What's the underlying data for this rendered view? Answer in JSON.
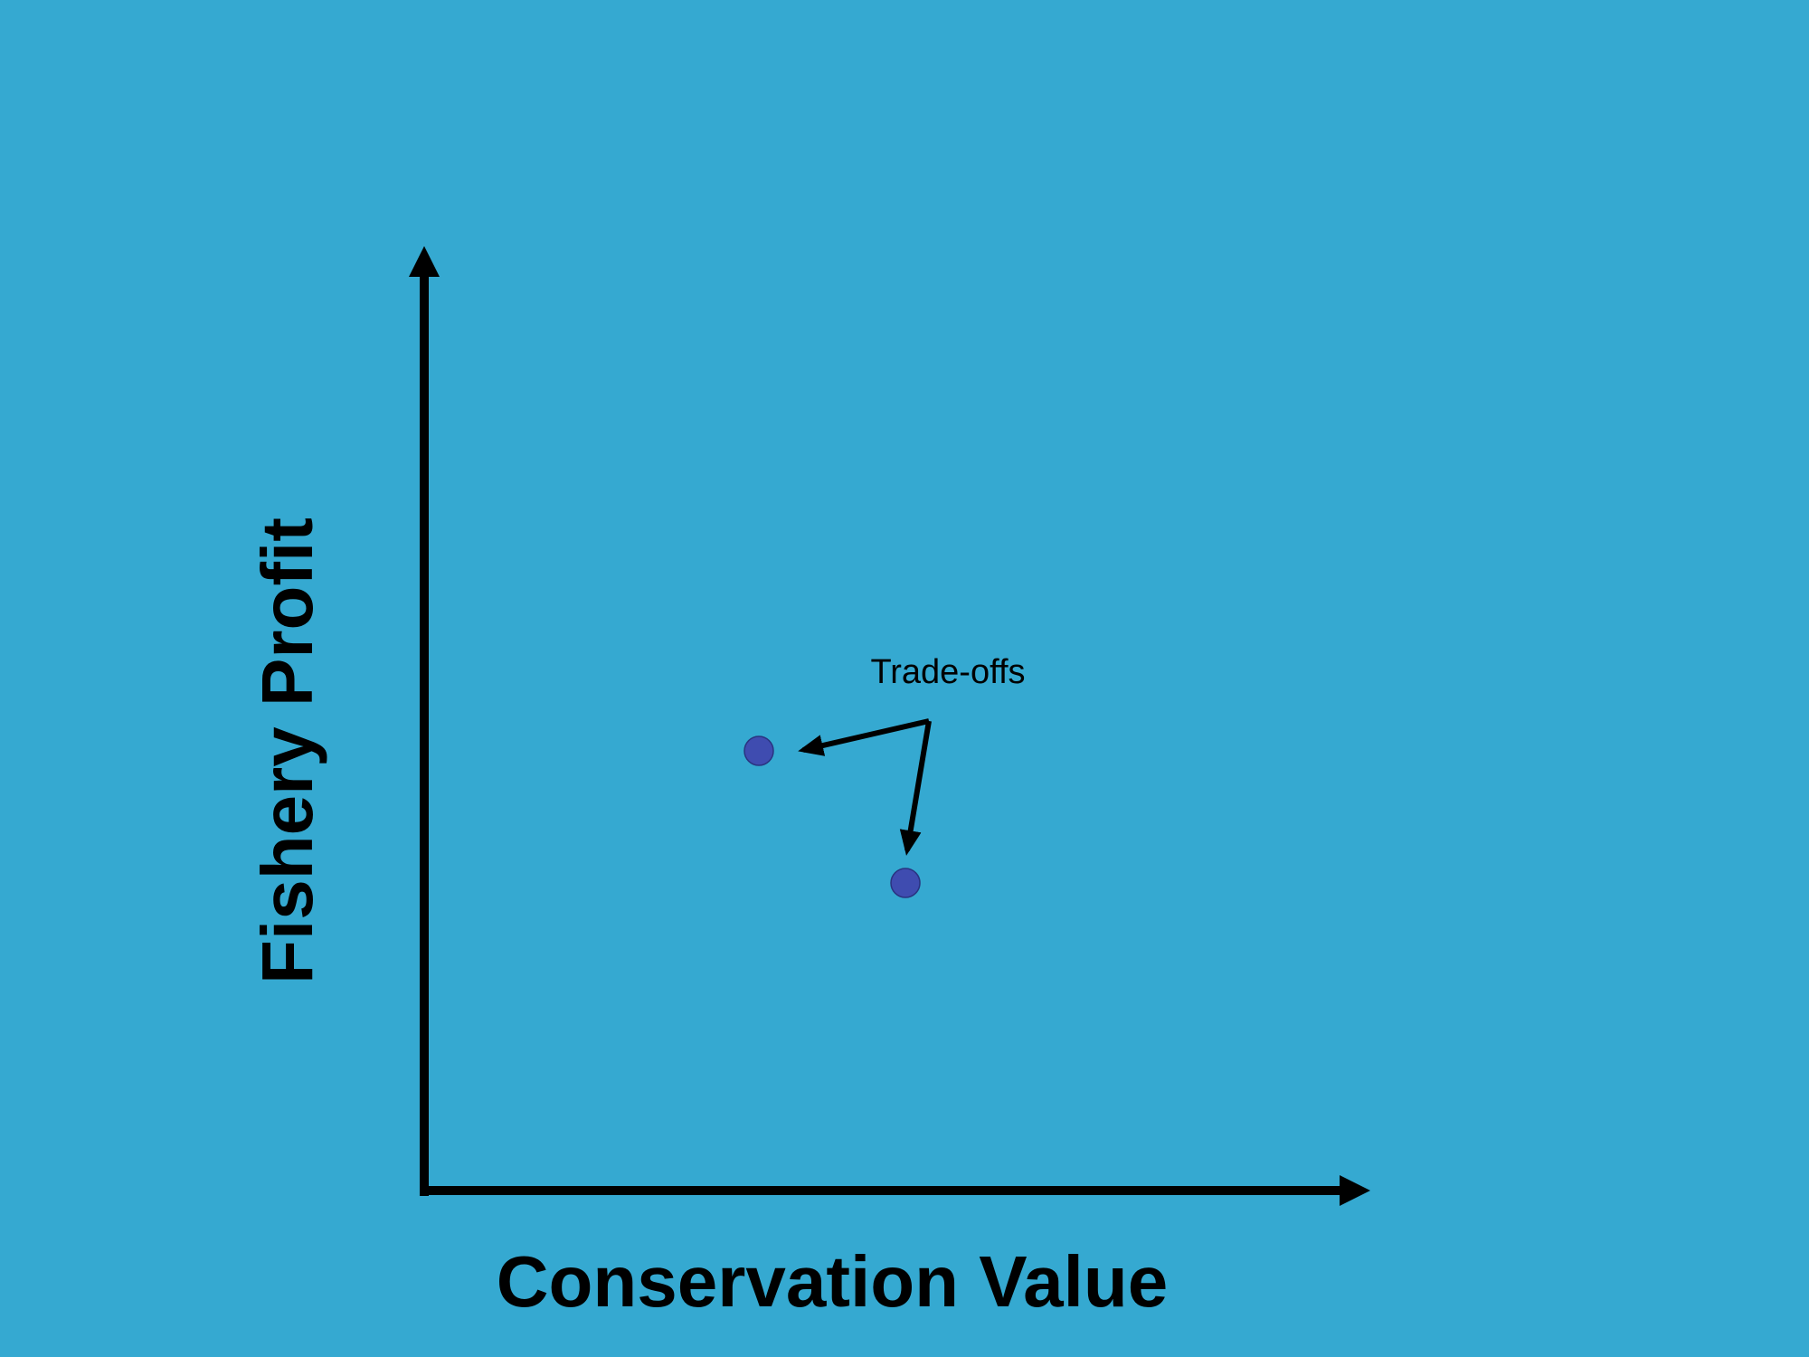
{
  "axes": {
    "x_label": "Conservation Value",
    "y_label": "Fishery Profit"
  },
  "annotation": {
    "text": "Trade-offs"
  }
}
